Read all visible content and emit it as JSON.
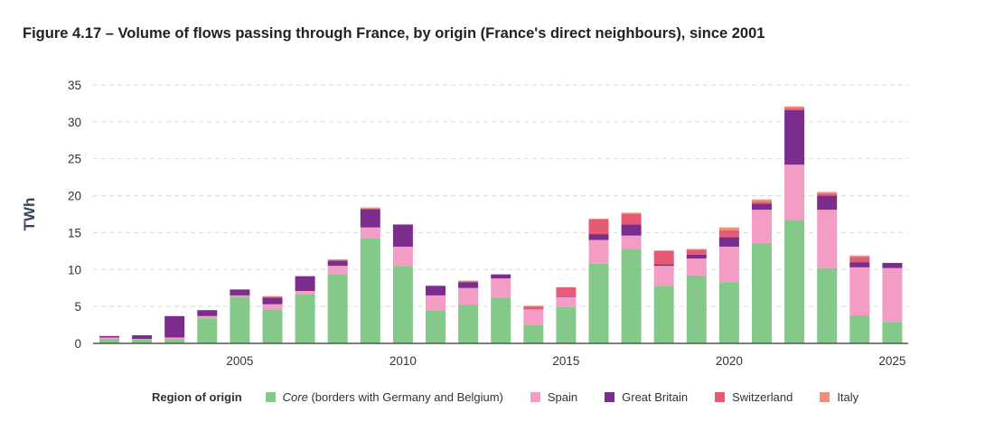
{
  "title": "Figure 4.17 – Volume of flows passing through France, by origin (France's direct neighbours), since 2001",
  "chart_data": {
    "type": "bar",
    "stacked": true,
    "ylabel": "TWh",
    "xlabel": "",
    "ylim": [
      0,
      35
    ],
    "yticks": [
      0,
      5,
      10,
      15,
      20,
      25,
      30,
      35
    ],
    "xticks": [
      2005,
      2010,
      2015,
      2020,
      2025
    ],
    "grid": true,
    "legend_position": "bottom",
    "legend_title": "Region of origin",
    "categories": [
      2001,
      2002,
      2003,
      2004,
      2005,
      2006,
      2007,
      2008,
      2009,
      2010,
      2011,
      2012,
      2013,
      2014,
      2015,
      2016,
      2017,
      2018,
      2019,
      2020,
      2021,
      2022,
      2023,
      2024,
      2025
    ],
    "series": [
      {
        "name": "Core",
        "name_suffix": " (borders with Germany and Belgium)",
        "color": "#85c98a",
        "values": [
          0.6,
          0.5,
          0.6,
          3.4,
          6.3,
          4.6,
          6.7,
          9.4,
          14.2,
          10.5,
          4.4,
          5.2,
          6.2,
          2.5,
          4.9,
          10.8,
          12.8,
          7.8,
          9.2,
          8.3,
          13.6,
          16.7,
          10.2,
          3.8,
          2.9
        ]
      },
      {
        "name": "Spain",
        "color": "#f39dc4",
        "values": [
          0.2,
          0.1,
          0.2,
          0.3,
          0.2,
          0.7,
          0.4,
          1.1,
          1.5,
          2.6,
          2.1,
          2.3,
          2.6,
          2.1,
          1.4,
          3.2,
          1.8,
          2.7,
          2.3,
          4.8,
          4.5,
          7.5,
          7.9,
          6.5,
          7.3
        ]
      },
      {
        "name": "Great Britain",
        "color": "#7b2d8e",
        "values": [
          0.2,
          0.5,
          2.9,
          0.8,
          0.8,
          0.9,
          2.0,
          0.7,
          2.5,
          3.0,
          1.3,
          0.8,
          0.5,
          0.0,
          0.1,
          0.8,
          1.5,
          0.2,
          0.5,
          1.3,
          0.8,
          7.4,
          1.9,
          0.7,
          0.7
        ]
      },
      {
        "name": "Switzerland",
        "color": "#e75a73",
        "values": [
          0,
          0,
          0,
          0,
          0,
          0.1,
          0,
          0,
          0,
          0,
          0,
          0.1,
          0,
          0.4,
          1.2,
          2.0,
          1.4,
          1.8,
          0.7,
          0.9,
          0.3,
          0.3,
          0.3,
          0.7,
          0
        ]
      },
      {
        "name": "Italy",
        "color": "#f0907a",
        "values": [
          0,
          0,
          0,
          0,
          0,
          0.1,
          0,
          0.2,
          0.2,
          0,
          0,
          0.1,
          0.1,
          0.1,
          0,
          0.1,
          0.2,
          0.1,
          0.1,
          0.4,
          0.3,
          0.2,
          0.2,
          0.2,
          0
        ]
      }
    ]
  }
}
